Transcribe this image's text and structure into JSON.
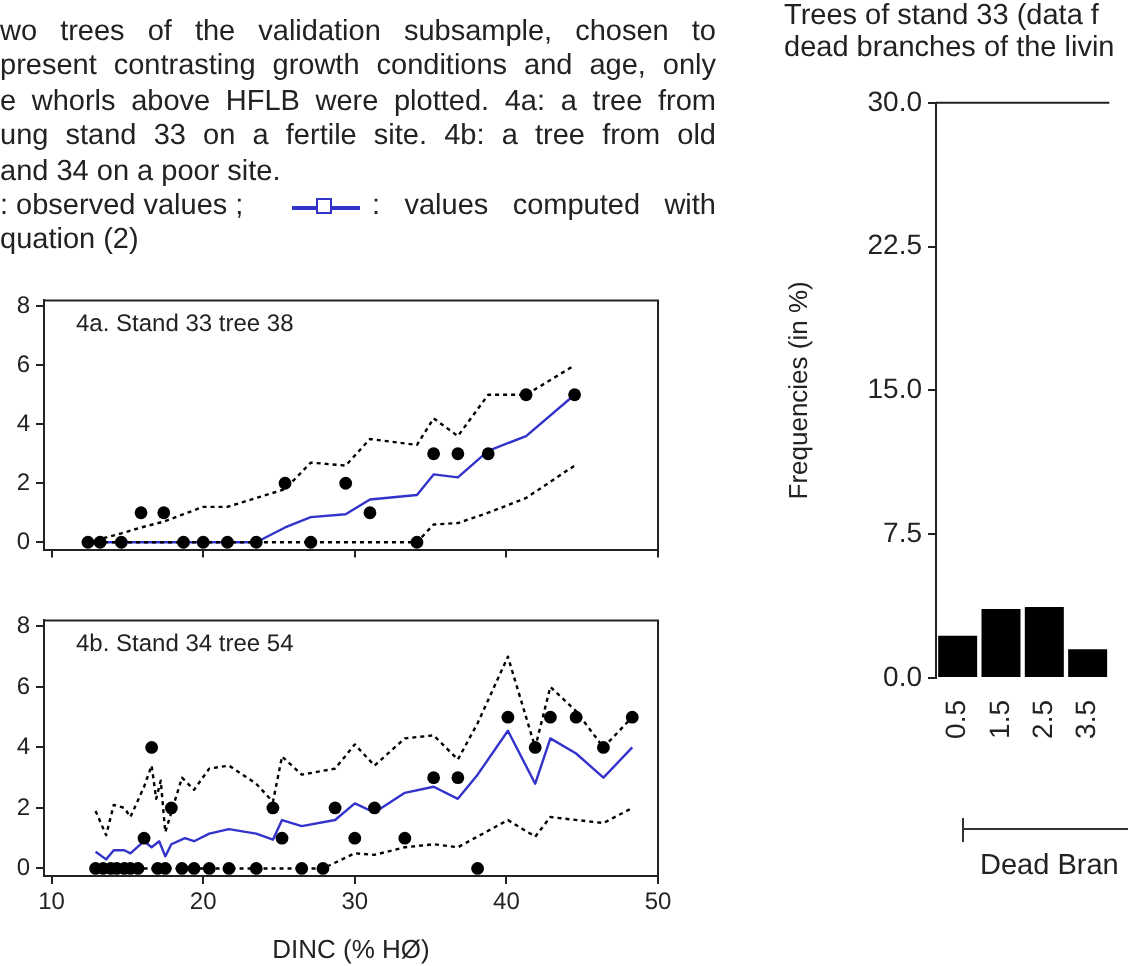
{
  "chart_data": [
    {
      "type": "line",
      "title": "4a. Stand 33 tree 38",
      "annotations": [
        "wo trees of the validation subsample, chosen to",
        "present contrasting growth conditions and age, only",
        "e whorls above HFLB were plotted. 4a: a tree from",
        "ung stand 33 on a fertile site. 4b: a tree from old",
        "and 34 on a poor site.",
        ": observed values ;",
        ": values computed with",
        "quation (2)"
      ],
      "xlim": [
        9.5,
        50
      ],
      "xticks": [
        {
          "value": 10,
          "label": null
        },
        {
          "value": 20,
          "label": null
        },
        {
          "value": 30,
          "label": null
        },
        {
          "value": 40,
          "label": null
        },
        {
          "value": 50,
          "label": null
        }
      ],
      "ylim": [
        -0.25,
        8.2
      ],
      "yticks": [
        0,
        2,
        4,
        6,
        8
      ],
      "tick_labels": "y",
      "grid": false,
      "legend": false,
      "series": [
        {
          "type": "line",
          "color": "#000000",
          "line_style": "dotted",
          "marker": "none",
          "x": [
            12.4,
            14.6,
            15.9,
            17.4,
            20,
            21.6,
            23.5,
            25.4,
            27.1,
            29.4,
            31.0,
            34.1,
            35.2,
            36.8,
            38.8,
            41.3,
            44.5
          ],
          "values": [
            0,
            0.3,
            0.5,
            0.7,
            1.2,
            1.2,
            1.5,
            1.8,
            2.7,
            2.6,
            3.5,
            3.3,
            4.2,
            3.6,
            5.0,
            5.0,
            6.0
          ]
        },
        {
          "type": "line",
          "color": "#000000",
          "line_style": "dotted",
          "marker": "none",
          "x": [
            12.4,
            23.5,
            34.1,
            35.2,
            36.8,
            38.8,
            41.3,
            44.5
          ],
          "values": [
            0,
            0,
            0,
            0.6,
            0.65,
            1.0,
            1.5,
            2.6
          ]
        },
        {
          "type": "line",
          "color": "#3333cc",
          "line_style": "solid",
          "marker": "none",
          "x": [
            12.4,
            23.5,
            25.4,
            27.1,
            29.4,
            31.0,
            34.1,
            35.2,
            36.8,
            38.8,
            41.3,
            44.5
          ],
          "values": [
            0,
            0,
            0.5,
            0.85,
            0.95,
            1.45,
            1.6,
            2.3,
            2.2,
            3.1,
            3.6,
            5.0
          ]
        },
        {
          "type": "scatter",
          "color": "#000000",
          "marker": "circle",
          "x": [
            12.4,
            13.2,
            14.6,
            15.9,
            17.4,
            18.7,
            20,
            21.6,
            23.5,
            25.4,
            27.1,
            29.4,
            31.0,
            34.1,
            35.2,
            36.8,
            38.8,
            41.3,
            44.5
          ],
          "values": [
            0,
            0,
            0,
            1,
            1,
            0,
            0,
            0,
            0,
            2,
            0,
            2,
            1,
            0,
            3,
            3,
            3,
            5,
            5
          ]
        }
      ]
    },
    {
      "type": "line",
      "title": "4b. Stand 34 tree 54",
      "xlabel": "DINC (% HØ)",
      "xlim": [
        9.5,
        50
      ],
      "xticks": [
        10,
        20,
        30,
        40,
        50
      ],
      "ylim": [
        -0.25,
        8.2
      ],
      "yticks": [
        0,
        2,
        4,
        6,
        8
      ],
      "grid": false,
      "legend": false,
      "series": [
        {
          "type": "line",
          "color": "#000000",
          "line_style": "dotted",
          "marker": "none",
          "x": [
            12.9,
            13.6,
            14.1,
            14.8,
            15.2,
            16.1,
            16.6,
            16.9,
            17.2,
            17.5,
            18.6,
            19.4,
            20.4,
            21.7,
            23.5,
            24.6,
            25.2,
            26.5,
            28.7,
            30.0,
            31.3,
            33.3,
            35.2,
            36.8,
            38.1,
            40.1,
            41.9,
            42.9,
            44.6,
            46.4,
            48.3
          ],
          "values": [
            1.9,
            1.1,
            2.1,
            2.0,
            1.7,
            2.7,
            3.4,
            2.3,
            2.9,
            1.2,
            3.0,
            2.6,
            3.3,
            3.4,
            2.8,
            2.2,
            3.7,
            3.1,
            3.3,
            4.1,
            3.4,
            4.3,
            4.4,
            3.6,
            4.8,
            7.0,
            4.0,
            6.0,
            5.2,
            4.0,
            5.0
          ]
        },
        {
          "type": "line",
          "color": "#000000",
          "line_style": "dotted",
          "marker": "none",
          "x": [
            12.9,
            27.9,
            30.0,
            31.3,
            33.3,
            35.2,
            36.8,
            40.1,
            41.9,
            42.9,
            46.4,
            48.3
          ],
          "values": [
            0,
            0,
            0.5,
            0.45,
            0.7,
            0.8,
            0.7,
            1.6,
            1.05,
            1.7,
            1.5,
            2.0
          ]
        },
        {
          "type": "line",
          "color": "#3333cc",
          "line_style": "solid",
          "marker": "none",
          "x": [
            12.9,
            13.6,
            14.1,
            14.8,
            15.2,
            16.1,
            16.6,
            17.1,
            17.5,
            17.9,
            18.8,
            19.4,
            20.4,
            21.7,
            23.5,
            24.6,
            25.2,
            26.5,
            28.7,
            30.0,
            31.3,
            33.3,
            35.2,
            36.8,
            38.1,
            40.1,
            41.9,
            42.9,
            44.6,
            46.4,
            48.3
          ],
          "values": [
            0.55,
            0.3,
            0.6,
            0.6,
            0.5,
            0.9,
            0.7,
            0.9,
            0.4,
            0.8,
            1.0,
            0.9,
            1.15,
            1.3,
            1.15,
            0.95,
            1.6,
            1.4,
            1.6,
            2.15,
            1.85,
            2.5,
            2.7,
            2.3,
            3.1,
            4.55,
            2.8,
            4.3,
            3.8,
            3.0,
            4.0
          ]
        },
        {
          "type": "scatter",
          "color": "#000000",
          "marker": "circle",
          "x": [
            12.9,
            13.4,
            13.9,
            14.3,
            14.8,
            15.2,
            15.7,
            16.1,
            16.6,
            17.0,
            17.5,
            17.9,
            18.6,
            19.4,
            20.4,
            21.7,
            23.5,
            24.6,
            25.2,
            26.5,
            27.9,
            28.7,
            30.0,
            31.3,
            33.3,
            35.2,
            36.8,
            38.1,
            40.1,
            41.9,
            42.9,
            44.6,
            46.4,
            48.3
          ],
          "values": [
            0,
            0,
            0,
            0,
            0,
            0,
            0,
            1,
            4,
            0,
            0,
            2,
            0,
            0,
            0,
            0,
            0,
            2,
            1,
            0,
            0,
            2,
            1,
            2,
            1,
            3,
            3,
            0,
            5,
            4,
            5,
            5,
            4,
            5
          ]
        }
      ]
    },
    {
      "type": "bar",
      "title": "Trees of stand 33 (data f",
      "subtitle": "dead branches of the livin",
      "xlabel": "Dead Bran",
      "ylabel": "Frequencies (in %)",
      "categories": [
        "0.5",
        "1.5",
        "2.5",
        "3.5"
      ],
      "ylim": [
        0,
        30
      ],
      "yticks": [
        {
          "value": 0,
          "label": "0.0"
        },
        {
          "value": 7.5,
          "label": "7.5"
        },
        {
          "value": 15,
          "label": "15.0"
        },
        {
          "value": 22.5,
          "label": "22.5"
        },
        {
          "value": 30,
          "label": "30.0"
        }
      ],
      "grid": false,
      "legend": false,
      "series": [
        {
          "color": "#000000",
          "values": [
            2.2,
            3.6,
            3.7,
            1.5
          ]
        }
      ]
    }
  ]
}
